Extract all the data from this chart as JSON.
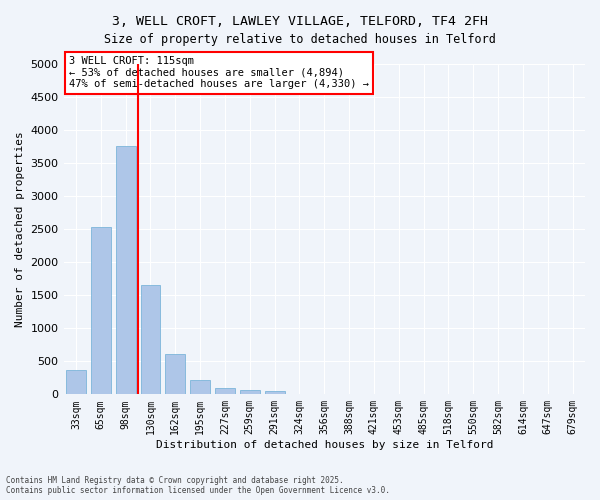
{
  "title_line1": "3, WELL CROFT, LAWLEY VILLAGE, TELFORD, TF4 2FH",
  "title_line2": "Size of property relative to detached houses in Telford",
  "xlabel": "Distribution of detached houses by size in Telford",
  "ylabel": "Number of detached properties",
  "categories": [
    "33sqm",
    "65sqm",
    "98sqm",
    "130sqm",
    "162sqm",
    "195sqm",
    "227sqm",
    "259sqm",
    "291sqm",
    "324sqm",
    "356sqm",
    "388sqm",
    "421sqm",
    "453sqm",
    "485sqm",
    "518sqm",
    "550sqm",
    "582sqm",
    "614sqm",
    "647sqm",
    "679sqm"
  ],
  "values": [
    370,
    2530,
    3760,
    1650,
    610,
    210,
    100,
    60,
    45,
    0,
    0,
    0,
    0,
    0,
    0,
    0,
    0,
    0,
    0,
    0,
    0
  ],
  "bar_color": "#aec6e8",
  "bar_edge_color": "#6baed6",
  "vline_x": 2.5,
  "vline_color": "red",
  "annotation_text": "3 WELL CROFT: 115sqm\n← 53% of detached houses are smaller (4,894)\n47% of semi-detached houses are larger (4,330) →",
  "annotation_box_color": "white",
  "annotation_box_edge": "red",
  "ylim": [
    0,
    5000
  ],
  "yticks": [
    0,
    500,
    1000,
    1500,
    2000,
    2500,
    3000,
    3500,
    4000,
    4500,
    5000
  ],
  "background_color": "#f0f4fa",
  "grid_color": "white",
  "footnote": "Contains HM Land Registry data © Crown copyright and database right 2025.\nContains public sector information licensed under the Open Government Licence v3.0."
}
